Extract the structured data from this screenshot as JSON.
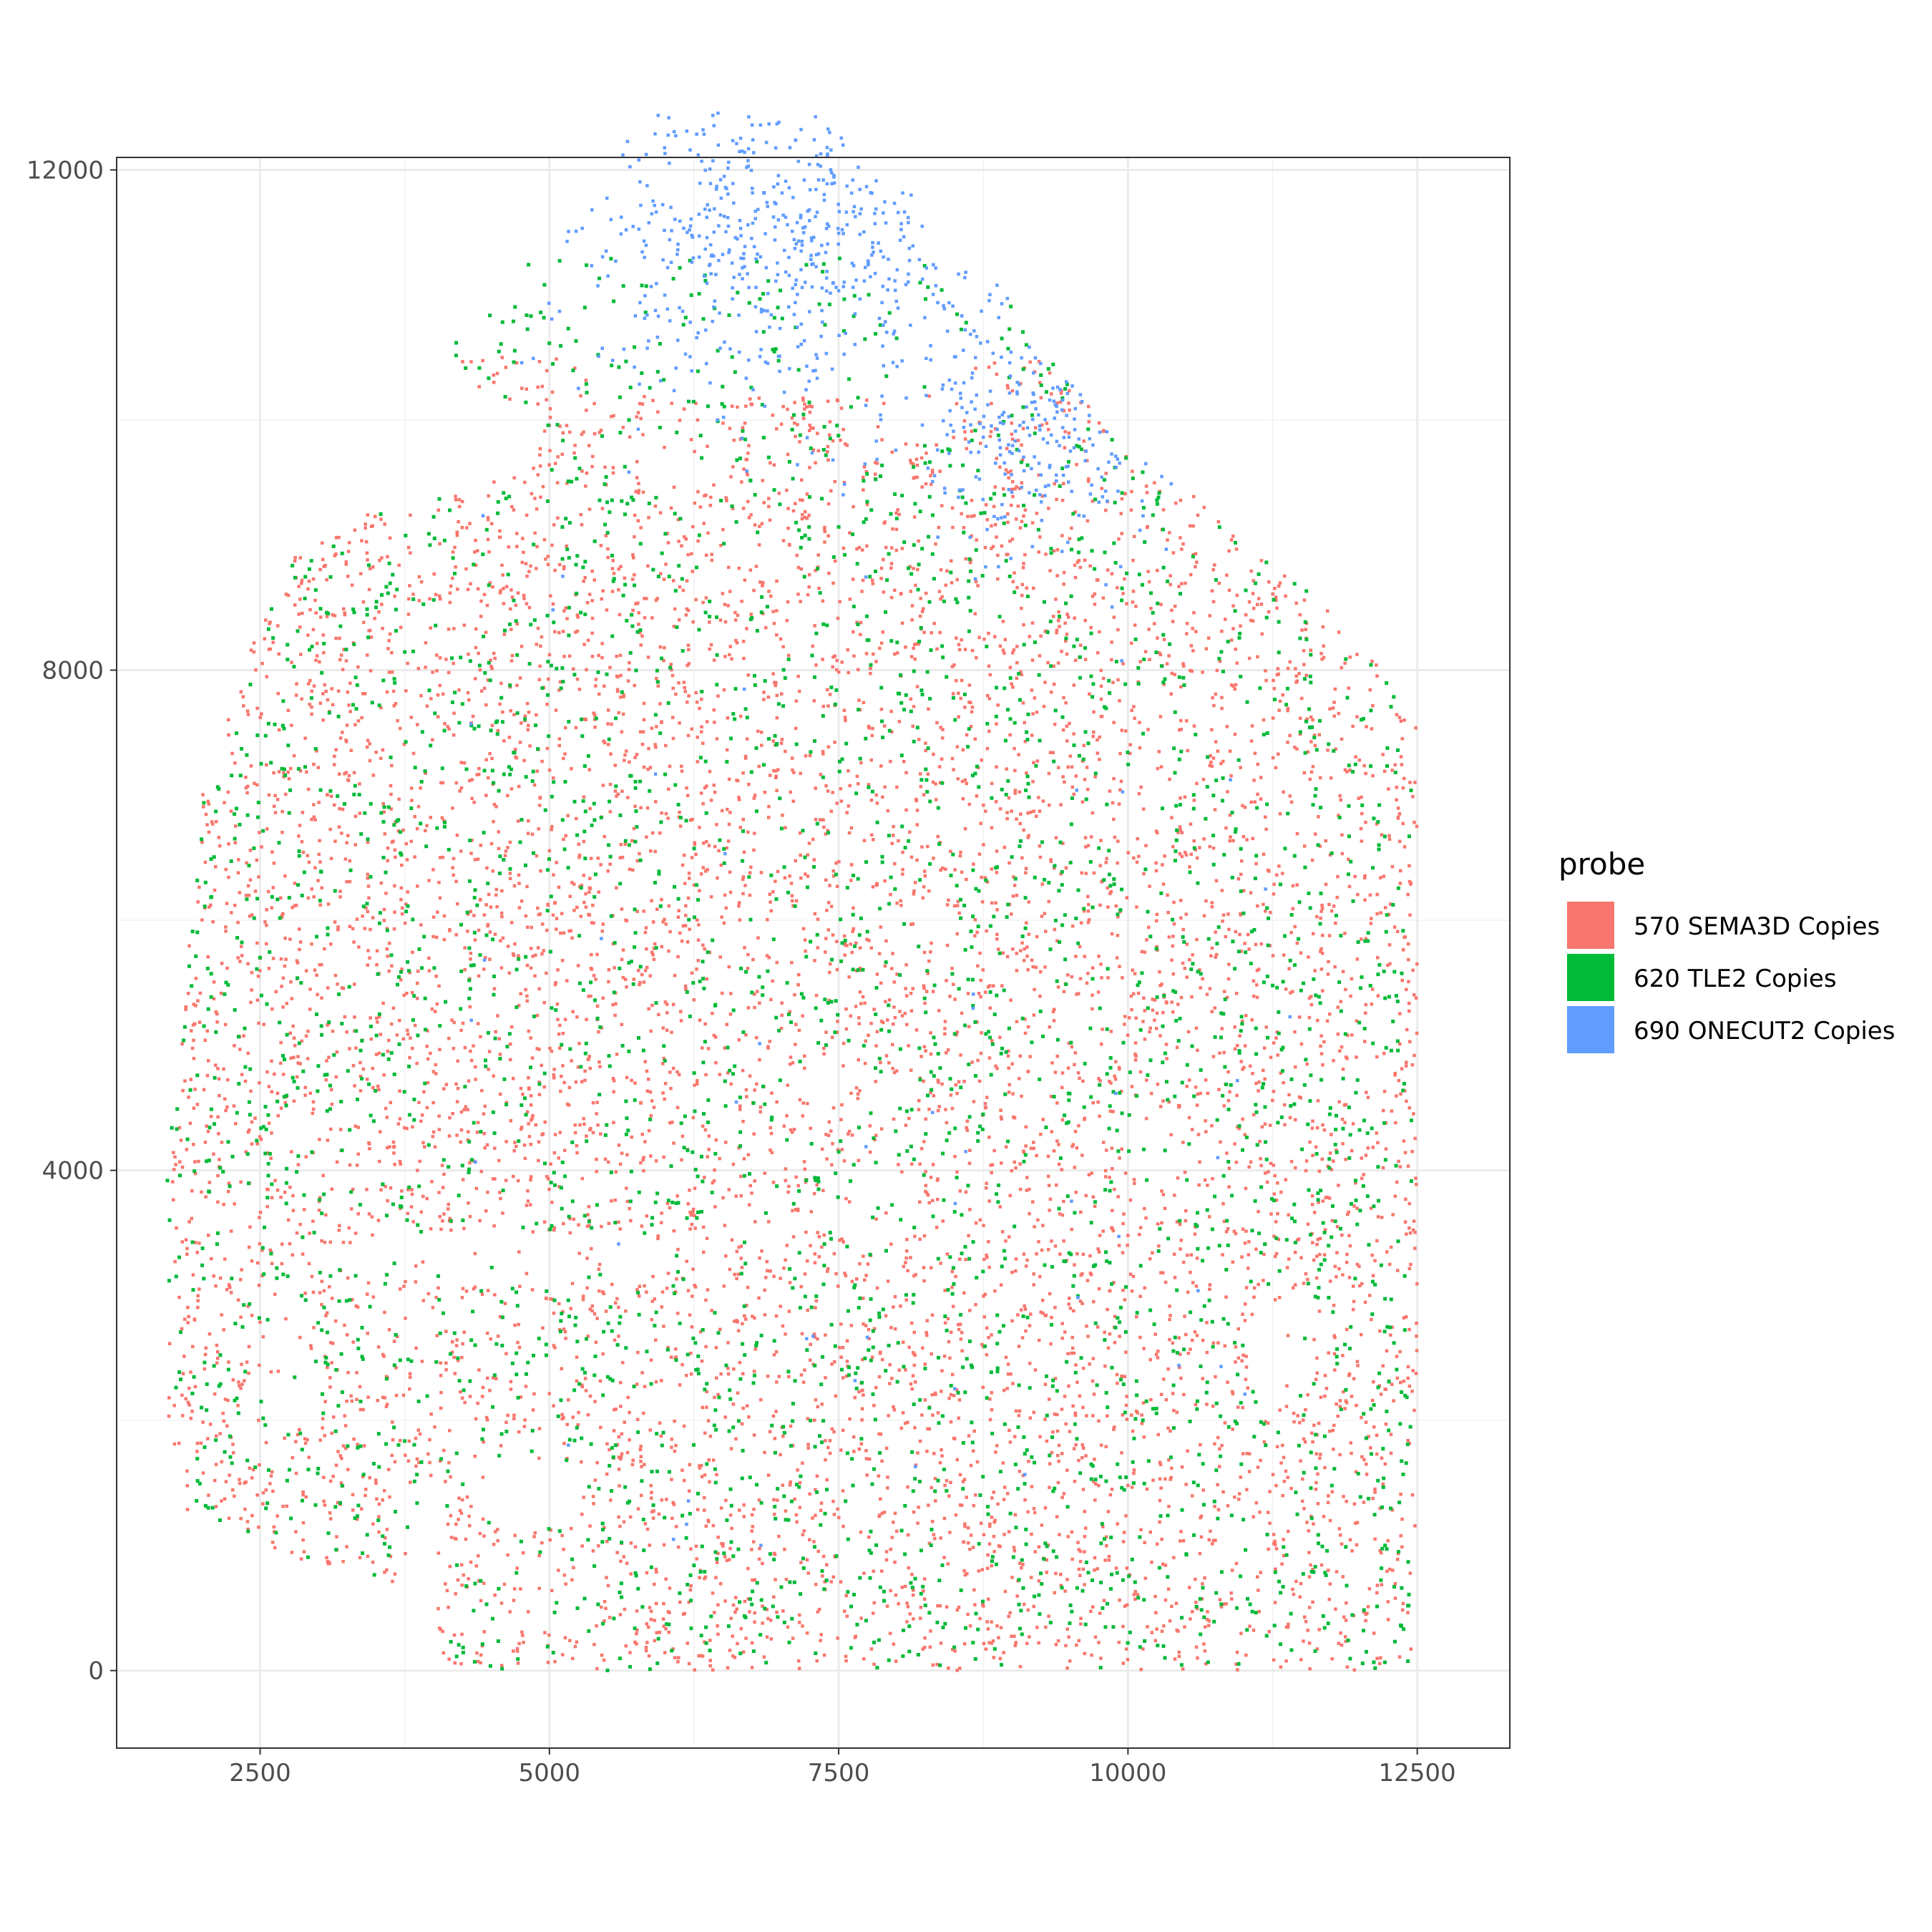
{
  "chart_data": {
    "type": "scatter",
    "title": "",
    "xlabel": "",
    "ylabel": "",
    "xlim": [
      1260,
      13300
    ],
    "ylim": [
      -620,
      12100
    ],
    "x_ticks": [
      2500,
      5000,
      7500,
      10000,
      12500
    ],
    "y_ticks": [
      0,
      4000,
      8000,
      12000
    ],
    "x_tick_labels": [
      "2500",
      "5000",
      "7500",
      "10000",
      "12500"
    ],
    "y_tick_labels": [
      "0",
      "4000",
      "8000",
      "12000"
    ],
    "grid": true,
    "legend": {
      "title": "probe",
      "position": "right",
      "entries": [
        "570 SEMA3D Copies",
        "620 TLE2 Copies",
        "690 ONECUT2 Copies"
      ]
    },
    "series": [
      {
        "name": "570 SEMA3D Copies",
        "color": "#F8766D",
        "approx_count": 7000,
        "x_range": [
          1700,
          12500
        ],
        "y_range": [
          0,
          10500
        ],
        "density_note": "Dense throughout the tissue body; absent in the top cap region"
      },
      {
        "name": "620 TLE2 Copies",
        "color": "#00BA38",
        "approx_count": 3000,
        "x_range": [
          1600,
          12450
        ],
        "y_range": [
          0,
          11300
        ],
        "density_note": "Scattered throughout the whole tissue section"
      },
      {
        "name": "690 ONECUT2 Copies",
        "color": "#619CFF",
        "approx_count": 800,
        "x_range": [
          4200,
          11500
        ],
        "y_range": [
          8500,
          12700
        ],
        "density_note": "Concentrated in the top cap region (y > 10000, x 5500-8500)"
      }
    ]
  },
  "colors": {
    "panel_border": "#333333",
    "grid_major": "#EBEBEB",
    "grid_minor": "#F2F2F2",
    "background": "#FFFFFF"
  }
}
